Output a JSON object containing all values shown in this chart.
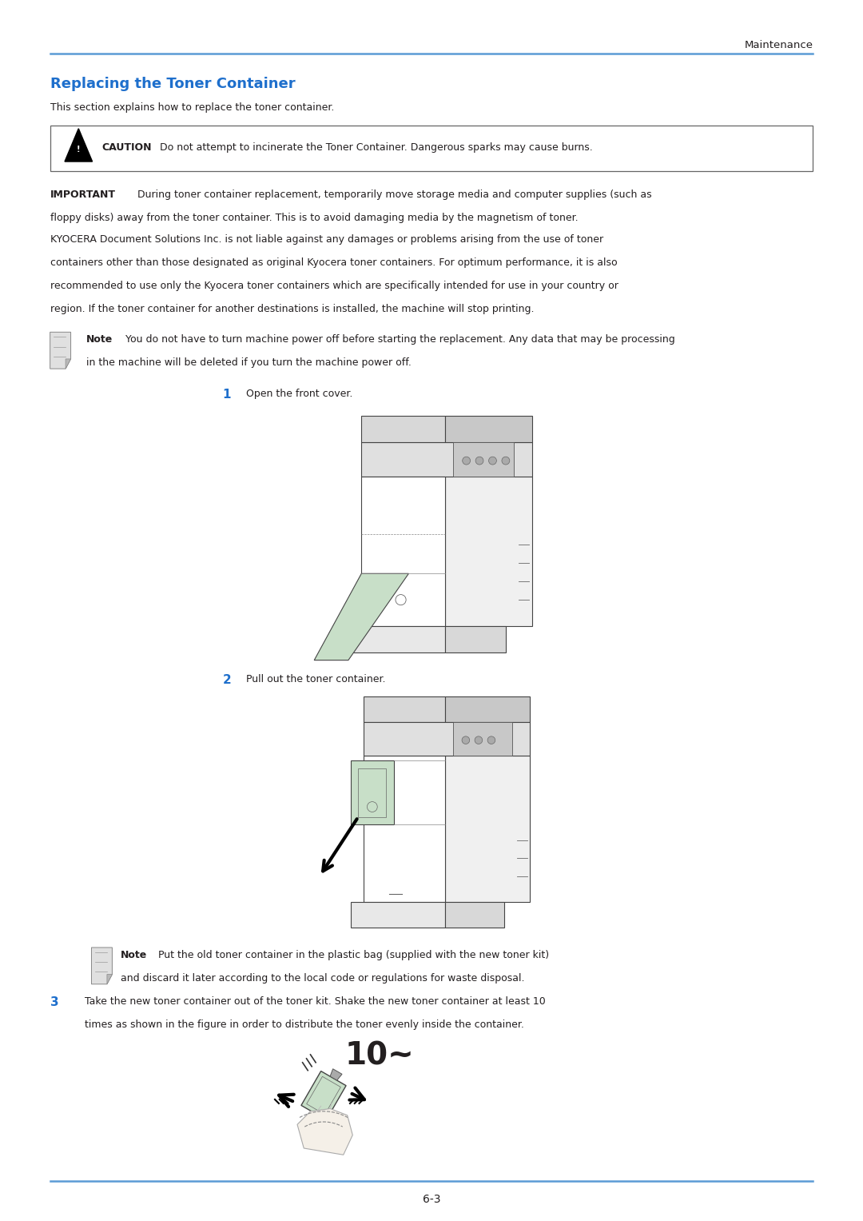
{
  "page_bg": "#ffffff",
  "header_text": "Maintenance",
  "header_line_color": "#5b9bd5",
  "title": "Replacing the Toner Container",
  "title_color": "#1e6fcc",
  "subtitle": "This section explains how to replace the toner container.",
  "caution_bold": "CAUTION",
  "caution_rest": "  Do not attempt to incinerate the Toner Container. Dangerous sparks may cause burns.",
  "important_bold": "IMPORTANT",
  "important_rest": "  During toner container replacement, temporarily move storage media and computer supplies (such as",
  "important_line2": "floppy disks) away from the toner container. This is to avoid damaging media by the magnetism of toner.",
  "kyocera_line1": "KYOCERA Document Solutions Inc. is not liable against any damages or problems arising from the use of toner",
  "kyocera_line2": "containers other than those designated as original Kyocera toner containers. For optimum performance, it is also",
  "kyocera_line3": "recommended to use only the Kyocera toner containers which are specifically intended for use in your country or",
  "kyocera_line4": "region. If the toner container for another destinations is installed, the machine will stop printing.",
  "note1_bold": "Note",
  "note1_rest": "  You do not have to turn machine power off before starting the replacement. Any data that may be processing",
  "note1_line2": "in the machine will be deleted if you turn the machine power off.",
  "step1_num": "1",
  "step1_text": "Open the front cover.",
  "step2_num": "2",
  "step2_text": "Pull out the toner container.",
  "note2_bold": "Note",
  "note2_rest": "  Put the old toner container in the plastic bag (supplied with the new toner kit)",
  "note2_line2": "and discard it later according to the local code or regulations for waste disposal.",
  "step3_num": "3",
  "step3_line1": "Take the new toner container out of the toner kit. Shake the new toner container at least 10",
  "step3_line2": "times as shown in the figure in order to distribute the toner evenly inside the container.",
  "step3_big": "10~",
  "footer_text": "6-3",
  "footer_line_color": "#5b9bd5",
  "accent_color": "#1e6fcc",
  "text_color": "#231f20",
  "green_fill": "#c8dfc8",
  "light_gray": "#d0d0d0",
  "body_font_size": 9.0,
  "ml": 0.058,
  "mr": 0.942
}
